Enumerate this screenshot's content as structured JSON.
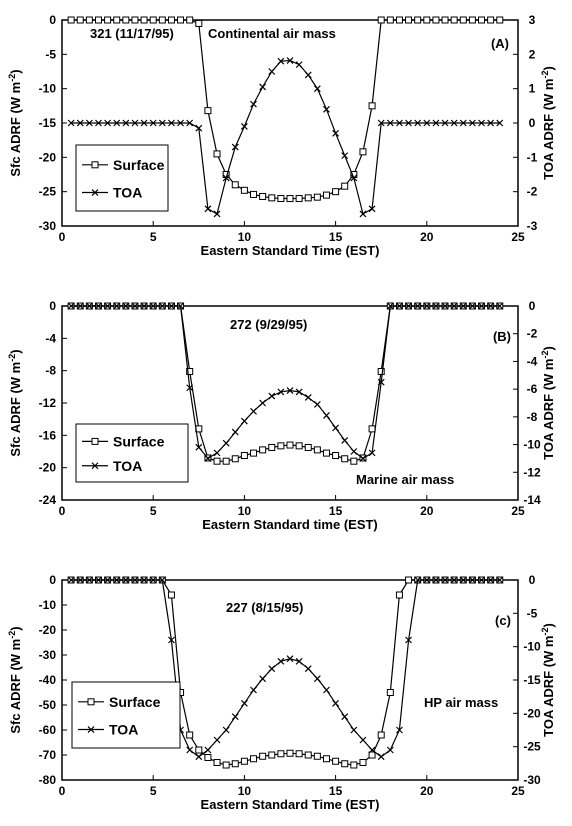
{
  "chart_data": [
    {
      "type": "line",
      "panel_label": "(A)",
      "run_label": "321 (11/17/95)",
      "air_mass_label": "Continental air mass",
      "xlabel": "Eastern Standard Time (EST)",
      "ylabel_left": "Sfc ADRF (W m⁻²)",
      "ylabel_right": "TOA ADRF (W m⁻²)",
      "xlim": [
        0,
        25
      ],
      "x_ticks": [
        0,
        5,
        10,
        15,
        20,
        25
      ],
      "ylim_left": [
        -30,
        0
      ],
      "y_ticks_left": [
        0,
        -5,
        -10,
        -15,
        -20,
        -25,
        -30
      ],
      "ylim_right": [
        -3,
        3
      ],
      "y_ticks_right": [
        3,
        2,
        1,
        0,
        -1,
        -2,
        -3
      ],
      "legend": [
        "Surface",
        "TOA"
      ],
      "series": [
        {
          "name": "Surface",
          "axis": "left",
          "marker": "square",
          "x": [
            0.5,
            1,
            1.5,
            2,
            2.5,
            3,
            3.5,
            4,
            4.5,
            5,
            5.5,
            6,
            6.5,
            7,
            7.5,
            8,
            8.5,
            9,
            9.5,
            10,
            10.5,
            11,
            11.5,
            12,
            12.5,
            13,
            13.5,
            14,
            14.5,
            15,
            15.5,
            16,
            16.5,
            17,
            17.5,
            18,
            18.5,
            19,
            19.5,
            20,
            20.5,
            21,
            21.5,
            22,
            22.5,
            23,
            23.5,
            24
          ],
          "values": [
            0,
            0,
            0,
            0,
            0,
            0,
            0,
            0,
            0,
            0,
            0,
            0,
            0,
            0,
            -0.5,
            -13.2,
            -19.5,
            -22.5,
            -24,
            -24.8,
            -25.4,
            -25.7,
            -25.9,
            -26,
            -26,
            -26,
            -25.9,
            -25.8,
            -25.5,
            -25,
            -24.2,
            -22.5,
            -19.2,
            -12.5,
            0,
            0,
            0,
            0,
            0,
            0,
            0,
            0,
            0,
            0,
            0,
            0,
            0,
            0
          ]
        },
        {
          "name": "TOA",
          "axis": "right",
          "marker": "x",
          "x": [
            0.5,
            1,
            1.5,
            2,
            2.5,
            3,
            3.5,
            4,
            4.5,
            5,
            5.5,
            6,
            6.5,
            7,
            7.5,
            8,
            8.5,
            9,
            9.5,
            10,
            10.5,
            11,
            11.5,
            12,
            12.5,
            13,
            13.5,
            14,
            14.5,
            15,
            15.5,
            16,
            16.5,
            17,
            17.5,
            18,
            18.5,
            19,
            19.5,
            20,
            20.5,
            21,
            21.5,
            22,
            22.5,
            23,
            23.5,
            24
          ],
          "values": [
            0,
            0,
            0,
            0,
            0,
            0,
            0,
            0,
            0,
            0,
            0,
            0,
            0,
            0,
            -0.15,
            -2.5,
            -2.65,
            -1.6,
            -0.7,
            -0.1,
            0.55,
            1.05,
            1.5,
            1.8,
            1.82,
            1.7,
            1.4,
            1,
            0.4,
            -0.3,
            -0.95,
            -1.6,
            -2.65,
            -2.5,
            0,
            0,
            0,
            0,
            0,
            0,
            0,
            0,
            0,
            0,
            0,
            0,
            0,
            0
          ]
        }
      ]
    },
    {
      "type": "line",
      "panel_label": "(B)",
      "run_label": "272 (9/29/95)",
      "air_mass_label": "Marine air mass",
      "xlabel": "Eastern Standard time (EST)",
      "ylabel_left": "Sfc ADRF (W m⁻²)",
      "ylabel_right": "TOA ADRF (W m⁻²)",
      "xlim": [
        0,
        25
      ],
      "x_ticks": [
        0,
        5,
        10,
        15,
        20,
        25
      ],
      "ylim_left": [
        -24,
        0
      ],
      "y_ticks_left": [
        0,
        -4,
        -8,
        -12,
        -16,
        -20,
        -24
      ],
      "ylim_right": [
        -14,
        0
      ],
      "y_ticks_right": [
        0,
        -2,
        -4,
        -6,
        -8,
        -10,
        -12,
        -14
      ],
      "legend": [
        "Surface",
        "TOA"
      ],
      "series": [
        {
          "name": "Surface",
          "axis": "left",
          "marker": "square",
          "x": [
            0.5,
            1,
            1.5,
            2,
            2.5,
            3,
            3.5,
            4,
            4.5,
            5,
            5.5,
            6,
            6.5,
            7,
            7.5,
            8,
            8.5,
            9,
            9.5,
            10,
            10.5,
            11,
            11.5,
            12,
            12.5,
            13,
            13.5,
            14,
            14.5,
            15,
            15.5,
            16,
            16.5,
            17,
            17.5,
            18,
            18.5,
            19,
            19.5,
            20,
            20.5,
            21,
            21.5,
            22,
            22.5,
            23,
            23.5,
            24
          ],
          "values": [
            0,
            0,
            0,
            0,
            0,
            0,
            0,
            0,
            0,
            0,
            0,
            0,
            0,
            -8.1,
            -15.2,
            -18.8,
            -19.2,
            -19.2,
            -18.9,
            -18.5,
            -18.2,
            -17.8,
            -17.5,
            -17.3,
            -17.2,
            -17.3,
            -17.5,
            -17.8,
            -18.2,
            -18.5,
            -18.9,
            -19.2,
            -18.8,
            -15.2,
            -8.1,
            0,
            0,
            0,
            0,
            0,
            0,
            0,
            0,
            0,
            0,
            0,
            0,
            0
          ]
        },
        {
          "name": "TOA",
          "axis": "right",
          "marker": "x",
          "x": [
            0.5,
            1,
            1.5,
            2,
            2.5,
            3,
            3.5,
            4,
            4.5,
            5,
            5.5,
            6,
            6.5,
            7,
            7.5,
            8,
            8.5,
            9,
            9.5,
            10,
            10.5,
            11,
            11.5,
            12,
            12.5,
            13,
            13.5,
            14,
            14.5,
            15,
            15.5,
            16,
            16.5,
            17,
            17.5,
            18,
            18.5,
            19,
            19.5,
            20,
            20.5,
            21,
            21.5,
            22,
            22.5,
            23,
            23.5,
            24
          ],
          "values": [
            0,
            0,
            0,
            0,
            0,
            0,
            0,
            0,
            0,
            0,
            0,
            0,
            0,
            -5.9,
            -10.2,
            -11,
            -10.6,
            -9.9,
            -9.1,
            -8.3,
            -7.6,
            -7,
            -6.5,
            -6.2,
            -6.1,
            -6.2,
            -6.6,
            -7.1,
            -7.9,
            -8.8,
            -9.7,
            -10.5,
            -11,
            -10.6,
            -5.5,
            0,
            0,
            0,
            0,
            0,
            0,
            0,
            0,
            0,
            0,
            0,
            0,
            0
          ]
        }
      ]
    },
    {
      "type": "line",
      "panel_label": "(c)",
      "run_label": "227 (8/15/95)",
      "air_mass_label": "HP air mass",
      "xlabel": "Eastern Standard Time (EST)",
      "ylabel_left": "Sfc ADRF (W m⁻²)",
      "ylabel_right": "TOA ADRF (W m⁻²)",
      "xlim": [
        0,
        25
      ],
      "x_ticks": [
        0,
        5,
        10,
        15,
        20,
        25
      ],
      "ylim_left": [
        -80,
        0
      ],
      "y_ticks_left": [
        0,
        -10,
        -20,
        -30,
        -40,
        -50,
        -60,
        -70,
        -80
      ],
      "ylim_right": [
        -30,
        0
      ],
      "y_ticks_right": [
        0,
        -5,
        -10,
        -15,
        -20,
        -25,
        -30
      ],
      "legend": [
        "Surface",
        "TOA"
      ],
      "series": [
        {
          "name": "Surface",
          "axis": "left",
          "marker": "square",
          "x": [
            0.5,
            1,
            1.5,
            2,
            2.5,
            3,
            3.5,
            4,
            4.5,
            5,
            5.5,
            6,
            6.5,
            7,
            7.5,
            8,
            8.5,
            9,
            9.5,
            10,
            10.5,
            11,
            11.5,
            12,
            12.5,
            13,
            13.5,
            14,
            14.5,
            15,
            15.5,
            16,
            16.5,
            17,
            17.5,
            18,
            18.5,
            19,
            19.5,
            20,
            20.5,
            21,
            21.5,
            22,
            22.5,
            23,
            23.5,
            24
          ],
          "values": [
            0,
            0,
            0,
            0,
            0,
            0,
            0,
            0,
            0,
            0,
            0,
            -6,
            -45,
            -62,
            -68,
            -71,
            -73,
            -74,
            -73.5,
            -72.5,
            -71.5,
            -70.5,
            -70,
            -69.5,
            -69.3,
            -69.5,
            -70,
            -70.5,
            -71.5,
            -72.5,
            -73.5,
            -74,
            -73,
            -70,
            -62,
            -45,
            -6,
            0,
            0,
            0,
            0,
            0,
            0,
            0,
            0,
            0,
            0,
            0
          ]
        },
        {
          "name": "TOA",
          "axis": "right",
          "marker": "x",
          "x": [
            0.5,
            1,
            1.5,
            2,
            2.5,
            3,
            3.5,
            4,
            4.5,
            5,
            5.5,
            6,
            6.5,
            7,
            7.5,
            8,
            8.5,
            9,
            9.5,
            10,
            10.5,
            11,
            11.5,
            12,
            12.5,
            13,
            13.5,
            14,
            14.5,
            15,
            15.5,
            16,
            16.5,
            17,
            17.5,
            18,
            18.5,
            19,
            19.5,
            20,
            20.5,
            21,
            21.5,
            22,
            22.5,
            23,
            23.5,
            24
          ],
          "values": [
            0,
            0,
            0,
            0,
            0,
            0,
            0,
            0,
            0,
            0,
            0,
            -9,
            -22.5,
            -25.5,
            -26.5,
            -25.5,
            -24,
            -22.5,
            -20.5,
            -18.5,
            -16.5,
            -14.8,
            -13.3,
            -12.2,
            -11.8,
            -12.2,
            -13.3,
            -14.8,
            -16.5,
            -18.5,
            -20.5,
            -22.5,
            -24,
            -25.5,
            -26.5,
            -25.5,
            -22.5,
            -9,
            0,
            0,
            0,
            0,
            0,
            0,
            0,
            0,
            0,
            0
          ]
        }
      ]
    }
  ]
}
